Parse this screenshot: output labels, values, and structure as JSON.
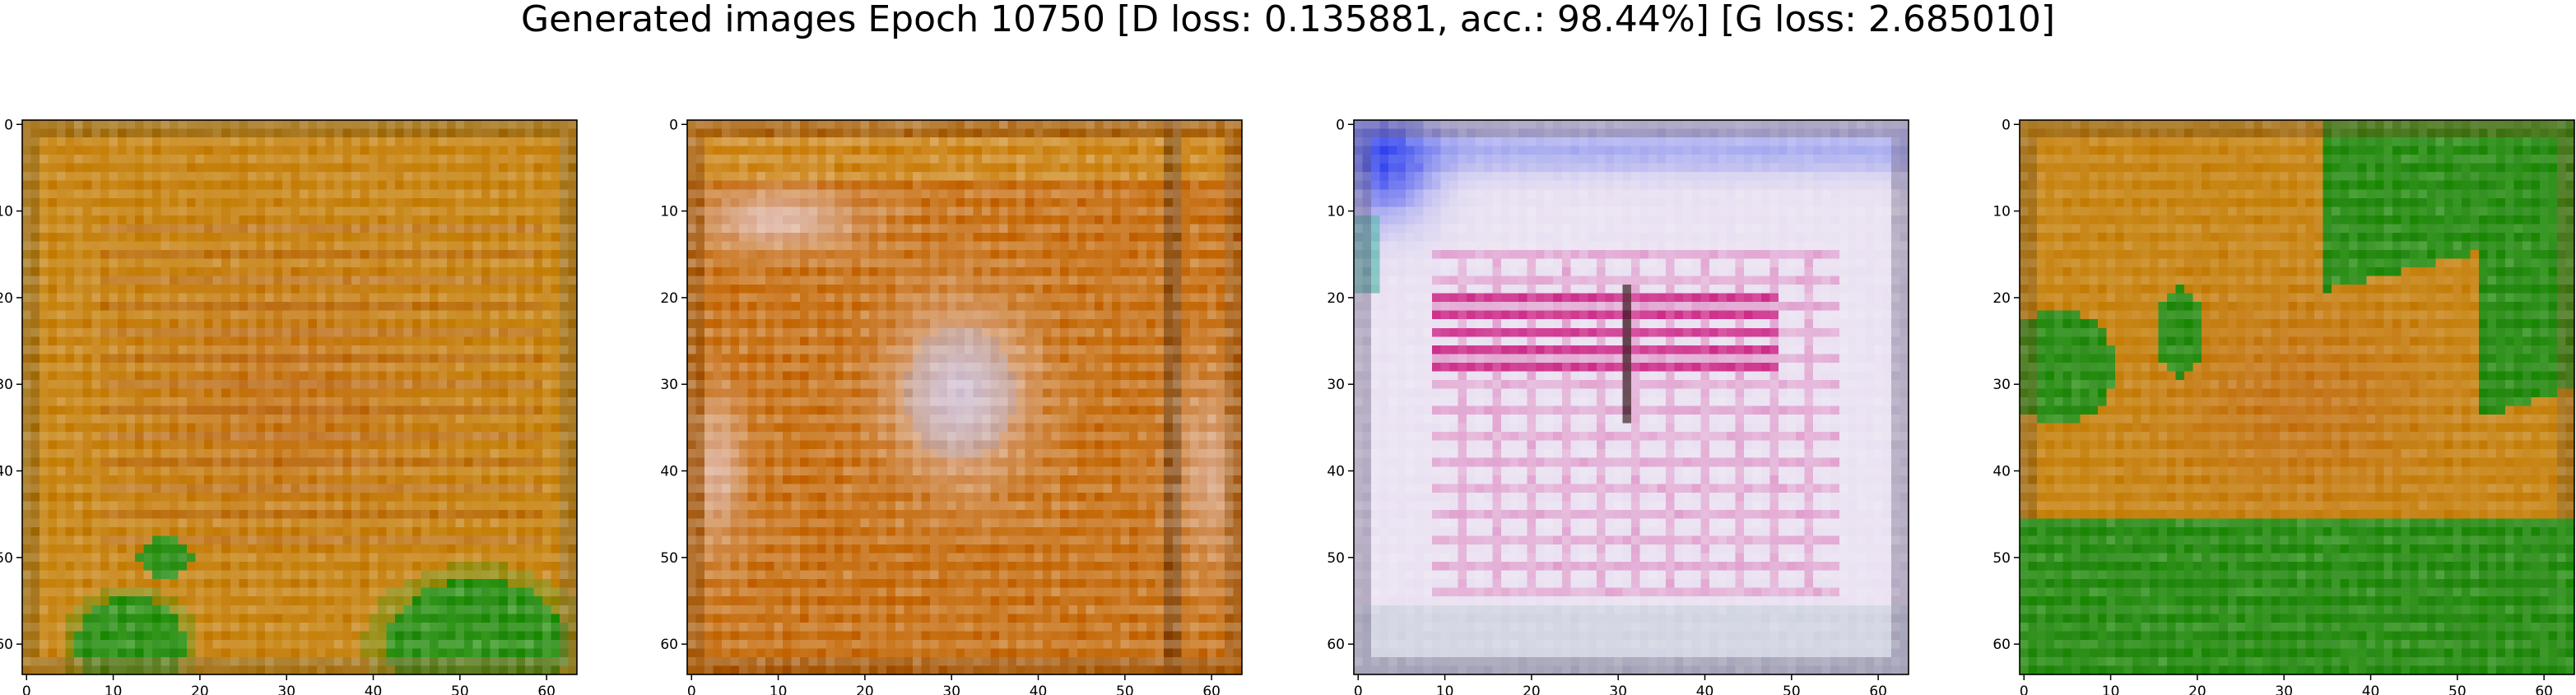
{
  "title": "Generated images Epoch 10750 [D loss: 0.135881, acc.: 98.44%] [G loss: 2.685010]",
  "chart_data": [
    {
      "type": "heatmap",
      "panel": 1,
      "description_key": "sample-1",
      "xlim": [
        0,
        64
      ],
      "ylim": [
        64,
        0
      ],
      "x_ticks": [
        "0",
        "10",
        "20",
        "30",
        "40",
        "50",
        "60"
      ],
      "y_ticks": [
        "0",
        "10",
        "20",
        "30",
        "40",
        "50",
        "60"
      ],
      "dominant_colors": [
        "#c98a1a",
        "#d9a23a",
        "#b8641e",
        "#2e8f1c"
      ],
      "regions": [
        {
          "name": "orange-background",
          "color": "#c98a1a"
        },
        {
          "name": "green-blobs-bottom",
          "color": "#2e8f1c"
        }
      ]
    },
    {
      "type": "heatmap",
      "panel": 2,
      "description_key": "sample-2",
      "xlim": [
        0,
        64
      ],
      "ylim": [
        64,
        0
      ],
      "x_ticks": [
        "0",
        "10",
        "20",
        "30",
        "40",
        "50",
        "60"
      ],
      "y_ticks": [
        "0",
        "10",
        "20",
        "30",
        "40",
        "50",
        "60"
      ],
      "dominant_colors": [
        "#c9761e",
        "#e8d0e0",
        "#d59a48",
        "#a9b7d8"
      ],
      "regions": [
        {
          "name": "orange-background",
          "color": "#c9761e"
        },
        {
          "name": "pale-lavender-center",
          "color": "#e8d0e0"
        }
      ]
    },
    {
      "type": "heatmap",
      "panel": 3,
      "description_key": "sample-3",
      "xlim": [
        0,
        64
      ],
      "ylim": [
        64,
        0
      ],
      "x_ticks": [
        "0",
        "10",
        "20",
        "30",
        "40",
        "50",
        "60"
      ],
      "y_ticks": [
        "0",
        "10",
        "20",
        "30",
        "40",
        "50",
        "60"
      ],
      "dominant_colors": [
        "#ebe3f2",
        "#c9147a",
        "#6f7ff0",
        "#9aa0b8"
      ],
      "regions": [
        {
          "name": "pale-background",
          "color": "#ebe3f2"
        },
        {
          "name": "magenta-stripes",
          "color": "#c9147a"
        },
        {
          "name": "blue-corner",
          "color": "#3a4cf0"
        }
      ]
    },
    {
      "type": "heatmap",
      "panel": 4,
      "description_key": "sample-4",
      "xlim": [
        0,
        64
      ],
      "ylim": [
        64,
        0
      ],
      "x_ticks": [
        "0",
        "10",
        "20",
        "30",
        "40",
        "50",
        "60"
      ],
      "y_ticks": [
        "0",
        "10",
        "20",
        "30",
        "40",
        "50",
        "60"
      ],
      "dominant_colors": [
        "#c98a1a",
        "#2a8a18",
        "#c0641e"
      ],
      "regions": [
        {
          "name": "orange-center",
          "color": "#c98a1a"
        },
        {
          "name": "green-bottom-band",
          "color": "#2a8a18"
        },
        {
          "name": "green-top-right",
          "color": "#2a8a18"
        }
      ]
    }
  ]
}
